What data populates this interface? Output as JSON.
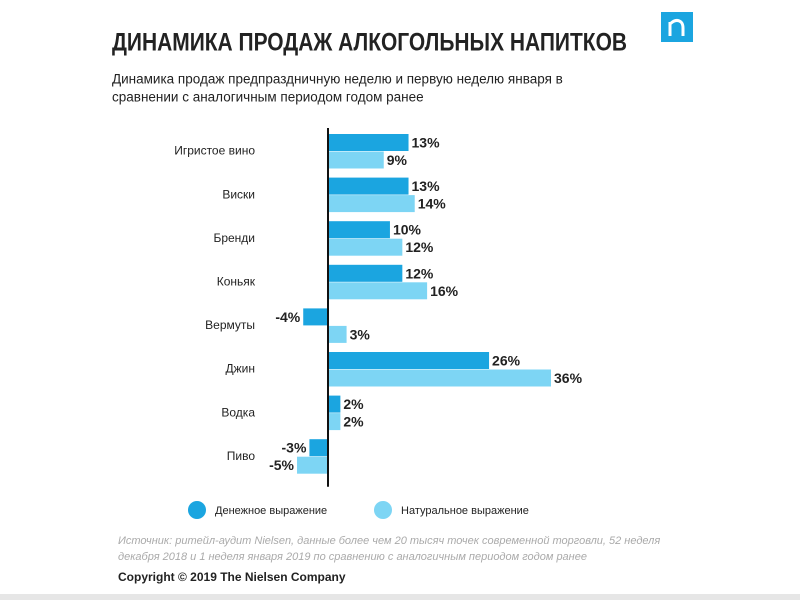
{
  "chart_data": {
    "type": "bar",
    "orientation": "horizontal",
    "title": "ДИНАМИКА ПРОДАЖ АЛКОГОЛЬНЫХ НАПИТКОВ",
    "subtitle": [
      "Динамика продаж предпраздничную неделю и первую неделю января в",
      "сравнении с аналогичным периодом годом ранее"
    ],
    "categories": [
      "Игристое вино",
      "Виски",
      "Бренди",
      "Коньяк",
      "Вермуты",
      "Джин",
      "Водка",
      "Пиво"
    ],
    "series": [
      {
        "name": "Денежное выражение",
        "color": "#1ba5e0",
        "values": [
          13,
          13,
          10,
          12,
          -4,
          26,
          2,
          -3
        ],
        "value_labels": [
          "13%",
          "13%",
          "10%",
          "12%",
          "-4%",
          "26%",
          "2%",
          "-3%"
        ]
      },
      {
        "name": "Натуральное выражение",
        "color": "#7dd5f4",
        "values": [
          9,
          14,
          12,
          16,
          3,
          36,
          2,
          -5
        ],
        "value_labels": [
          "9%",
          "14%",
          "12%",
          "16%",
          "3%",
          "36%",
          "2%",
          "-5%"
        ]
      }
    ],
    "source": [
      "Источник: ритейл-аудит Nielsen, данные более чем 20 тысяч точек современной торговли, 52 неделя",
      "декабря 2018 и 1 неделя января 2019 по сравнению с аналогичным периодом годом ранее"
    ],
    "copyright": "Copyright © 2019 The Nielsen Company"
  }
}
